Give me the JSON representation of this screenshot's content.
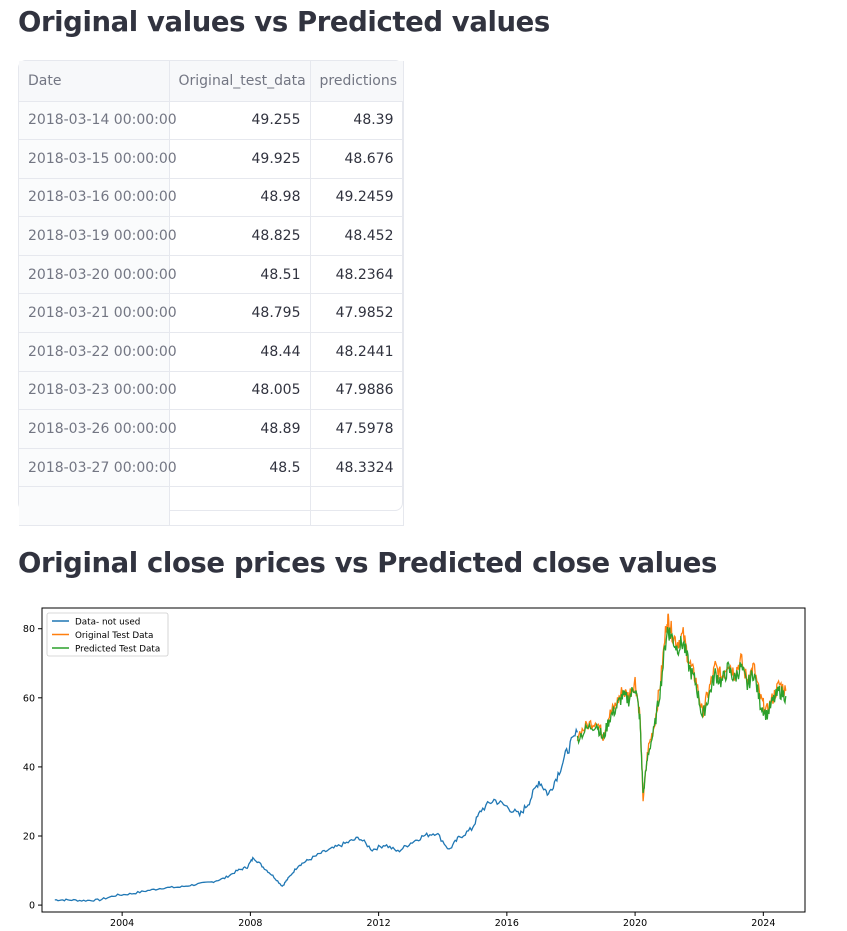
{
  "section1": {
    "title": "Original values vs Predicted values"
  },
  "table": {
    "columns": [
      "Date",
      "Original_test_data",
      "predictions"
    ],
    "rows": [
      [
        "2018-03-14 00:00:00",
        "49.255",
        "48.39"
      ],
      [
        "2018-03-15 00:00:00",
        "49.925",
        "48.676"
      ],
      [
        "2018-03-16 00:00:00",
        "48.98",
        "49.2459"
      ],
      [
        "2018-03-19 00:00:00",
        "48.825",
        "48.452"
      ],
      [
        "2018-03-20 00:00:00",
        "48.51",
        "48.2364"
      ],
      [
        "2018-03-21 00:00:00",
        "48.795",
        "47.9852"
      ],
      [
        "2018-03-22 00:00:00",
        "48.44",
        "48.2441"
      ],
      [
        "2018-03-23 00:00:00",
        "48.005",
        "47.9886"
      ],
      [
        "2018-03-26 00:00:00",
        "48.89",
        "47.5978"
      ],
      [
        "2018-03-27 00:00:00",
        "48.5",
        "48.3324"
      ]
    ]
  },
  "section2": {
    "title": "Original close prices vs Predicted close values"
  },
  "chart_data": {
    "type": "line",
    "title": "",
    "xlabel": "",
    "ylabel": "",
    "xlim": [
      2001.5,
      2025.3
    ],
    "ylim": [
      -2,
      86
    ],
    "xticks": [
      "2004",
      "2008",
      "2012",
      "2016",
      "2020",
      "2024"
    ],
    "yticks": [
      "0",
      "20",
      "40",
      "60",
      "80"
    ],
    "legend_position": "top-left",
    "series": [
      {
        "name": "Data- not used",
        "color": "#1f77b4",
        "x": [
          2001.9,
          2002.3,
          2002.8,
          2003.3,
          2003.8,
          2004.3,
          2004.8,
          2005.3,
          2005.8,
          2006.3,
          2006.8,
          2007.2,
          2007.6,
          2007.9,
          2008.1,
          2008.4,
          2008.7,
          2009.0,
          2009.2,
          2009.5,
          2009.8,
          2010.2,
          2010.6,
          2011.0,
          2011.4,
          2011.8,
          2012.2,
          2012.6,
          2013.0,
          2013.4,
          2013.8,
          2014.2,
          2014.5,
          2014.9,
          2015.2,
          2015.6,
          2016.0,
          2016.4,
          2016.7,
          2017.0,
          2017.3,
          2017.6,
          2017.9,
          2018.2
        ],
        "y": [
          1.5,
          1.5,
          1.3,
          1.5,
          2.8,
          3.3,
          4.2,
          5.0,
          5.2,
          6.0,
          6.7,
          7.8,
          10.0,
          11.0,
          13.8,
          11.0,
          8.5,
          5.5,
          8.0,
          11.5,
          13.0,
          15.0,
          16.5,
          18.0,
          19.5,
          16.0,
          17.5,
          15.5,
          18.0,
          20.0,
          21.0,
          16.0,
          19.5,
          22.0,
          27.5,
          30.5,
          28.5,
          26.0,
          30.0,
          36.0,
          32.0,
          38.0,
          45.0,
          50.0
        ]
      },
      {
        "name": "Original Test Data",
        "color": "#ff7f0e",
        "x": [
          2018.2,
          2018.5,
          2018.8,
          2019.0,
          2019.2,
          2019.4,
          2019.6,
          2019.8,
          2020.0,
          2020.15,
          2020.25,
          2020.4,
          2020.6,
          2020.8,
          2021.0,
          2021.1,
          2021.3,
          2021.5,
          2021.7,
          2021.9,
          2022.1,
          2022.3,
          2022.5,
          2022.7,
          2022.9,
          2023.1,
          2023.3,
          2023.5,
          2023.7,
          2023.9,
          2024.1,
          2024.3,
          2024.5,
          2024.7
        ],
        "y": [
          49.2,
          52.0,
          53.5,
          49.0,
          55.0,
          58.0,
          62.0,
          60.5,
          65.0,
          55.0,
          30.5,
          45.0,
          52.0,
          65.0,
          83.5,
          80.0,
          76.0,
          78.0,
          70.0,
          65.0,
          55.5,
          62.0,
          69.0,
          66.0,
          70.5,
          67.0,
          71.0,
          65.0,
          69.0,
          60.0,
          56.0,
          60.0,
          64.0,
          62.0
        ]
      },
      {
        "name": "Predicted Test Data",
        "color": "#2ca02c",
        "x": [
          2018.2,
          2018.5,
          2018.8,
          2019.0,
          2019.2,
          2019.4,
          2019.6,
          2019.8,
          2020.0,
          2020.15,
          2020.25,
          2020.4,
          2020.6,
          2020.8,
          2021.0,
          2021.1,
          2021.3,
          2021.5,
          2021.7,
          2021.9,
          2022.1,
          2022.3,
          2022.5,
          2022.7,
          2022.9,
          2023.1,
          2023.3,
          2023.5,
          2023.7,
          2023.9,
          2024.1,
          2024.3,
          2024.5,
          2024.7
        ],
        "y": [
          48.4,
          51.0,
          52.5,
          48.0,
          54.0,
          57.0,
          60.5,
          59.5,
          63.5,
          54.0,
          32.0,
          43.5,
          51.0,
          63.5,
          80.0,
          78.5,
          74.5,
          76.0,
          68.5,
          64.0,
          54.5,
          60.5,
          67.0,
          64.5,
          68.5,
          65.5,
          69.0,
          63.5,
          67.5,
          58.5,
          55.0,
          59.0,
          62.0,
          60.5
        ]
      }
    ]
  }
}
